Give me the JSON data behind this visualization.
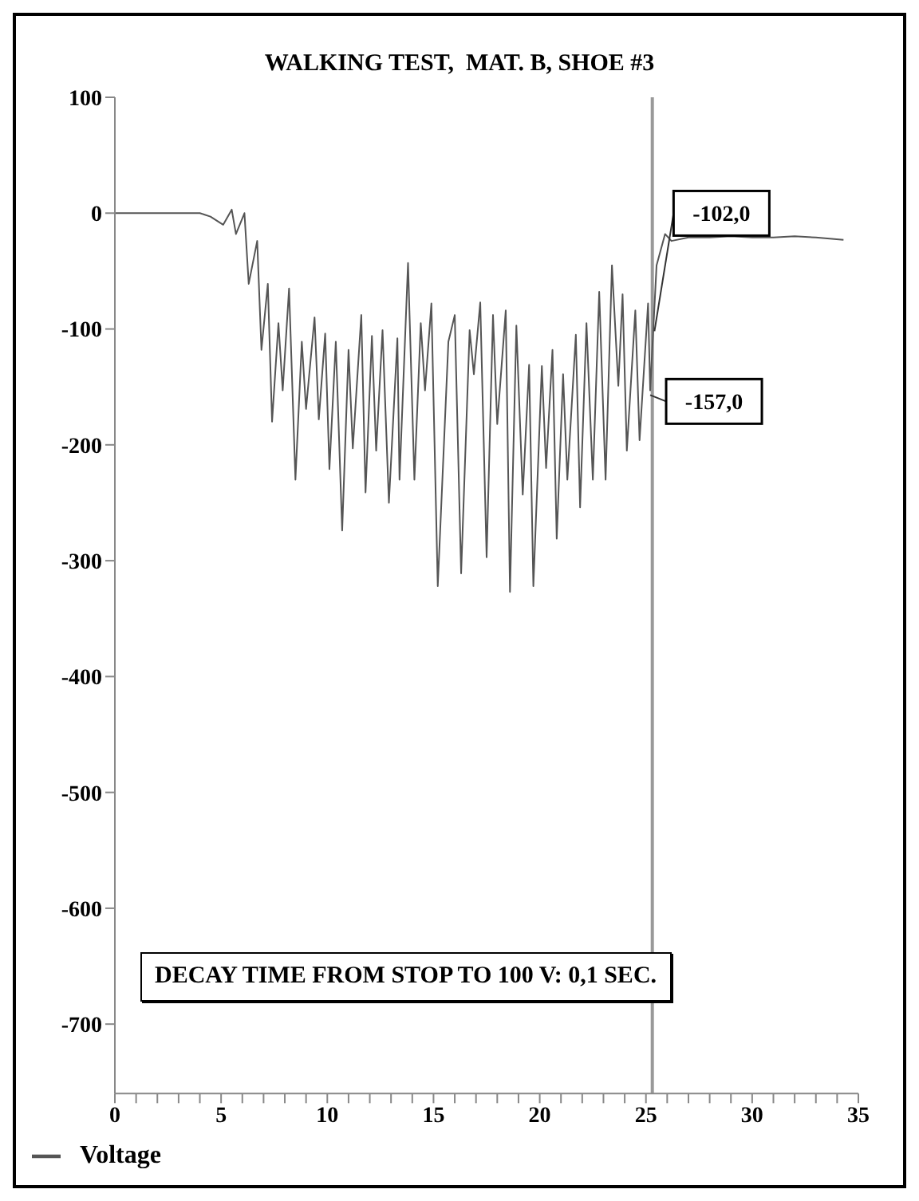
{
  "chart_data": {
    "type": "line",
    "title": "WALKING TEST,  MAT. B, SHOE #3",
    "series": [
      {
        "name": "Voltage",
        "color": "#555555",
        "x": [
          0,
          1,
          2,
          3,
          4,
          4.5,
          5.1,
          5.5,
          5.7,
          6.1,
          6.3,
          6.7,
          6.9,
          7.2,
          7.4,
          7.7,
          7.9,
          8.2,
          8.5,
          8.8,
          9.0,
          9.4,
          9.6,
          9.9,
          10.1,
          10.4,
          10.7,
          11.0,
          11.2,
          11.6,
          11.8,
          12.1,
          12.3,
          12.6,
          12.9,
          13.3,
          13.4,
          13.8,
          14.1,
          14.4,
          14.6,
          14.9,
          15.2,
          15.7,
          16.0,
          16.3,
          16.7,
          16.9,
          17.2,
          17.5,
          17.8,
          18.0,
          18.4,
          18.6,
          18.9,
          19.2,
          19.5,
          19.7,
          20.1,
          20.3,
          20.6,
          20.8,
          21.1,
          21.3,
          21.7,
          21.9,
          22.2,
          22.5,
          22.8,
          23.1,
          23.4,
          23.7,
          23.9,
          24.1,
          24.5,
          24.7,
          25.1,
          25.2,
          25.5,
          25.9,
          26.2,
          27,
          28,
          29,
          30,
          31,
          32,
          33,
          34.3
        ],
        "values": [
          0,
          0,
          0,
          0,
          0,
          -3,
          -10,
          3,
          -18,
          0,
          -61,
          -24,
          -118,
          -61,
          -180,
          -95,
          -153,
          -65,
          -230,
          -111,
          -169,
          -90,
          -178,
          -104,
          -221,
          -111,
          -274,
          -118,
          -203,
          -88,
          -241,
          -106,
          -205,
          -101,
          -250,
          -108,
          -230,
          -43,
          -230,
          -95,
          -153,
          -78,
          -322,
          -111,
          -88,
          -311,
          -101,
          -139,
          -77,
          -297,
          -88,
          -182,
          -84,
          -327,
          -97,
          -243,
          -131,
          -322,
          -132,
          -220,
          -118,
          -281,
          -139,
          -230,
          -105,
          -254,
          -95,
          -230,
          -68,
          -230,
          -45,
          -149,
          -70,
          -205,
          -84,
          -196,
          -78,
          -153,
          -45,
          -18,
          -24,
          -21,
          -21,
          -20,
          -21,
          -21,
          -20,
          -21,
          -23
        ]
      }
    ],
    "xlim": [
      0,
      35
    ],
    "xticks": [
      0,
      {
        "value": 1,
        "label": null
      },
      {
        "value": 2,
        "label": null
      },
      {
        "value": 3,
        "label": null
      },
      {
        "value": 4,
        "label": null
      },
      5,
      {
        "value": 6,
        "label": null
      },
      {
        "value": 7,
        "label": null
      },
      {
        "value": 8,
        "label": null
      },
      {
        "value": 9,
        "label": null
      },
      10,
      {
        "value": 11,
        "label": null
      },
      {
        "value": 12,
        "label": null
      },
      {
        "value": 13,
        "label": null
      },
      {
        "value": 14,
        "label": null
      },
      15,
      {
        "value": 16,
        "label": null
      },
      {
        "value": 17,
        "label": null
      },
      {
        "value": 18,
        "label": null
      },
      {
        "value": 19,
        "label": null
      },
      20,
      {
        "value": 21,
        "label": null
      },
      {
        "value": 22,
        "label": null
      },
      {
        "value": 23,
        "label": null
      },
      {
        "value": 24,
        "label": null
      },
      25,
      {
        "value": 26,
        "label": null
      },
      {
        "value": 27,
        "label": null
      },
      {
        "value": 28,
        "label": null
      },
      {
        "value": 29,
        "label": null
      },
      30,
      {
        "value": 31,
        "label": null
      },
      {
        "value": 32,
        "label": null
      },
      {
        "value": 33,
        "label": null
      },
      {
        "value": 34,
        "label": null
      },
      35
    ],
    "ylim": [
      -760,
      100
    ],
    "yticks": [
      -700,
      -600,
      -500,
      -400,
      -300,
      -200,
      -100,
      0,
      100
    ],
    "ref_lines": [
      {
        "axis": "x",
        "value": 25.3,
        "color": "#999999"
      }
    ],
    "annotations": [
      {
        "text": "-102,0",
        "x": 25.4,
        "y": -102
      },
      {
        "text": "-157,0",
        "x": 25.2,
        "y": -157
      },
      "DECAY TIME FROM STOP TO 100 V: 0,1 SEC."
    ],
    "grid": false,
    "legend": "bottom left",
    "marker": "none",
    "line_style": "solid"
  }
}
